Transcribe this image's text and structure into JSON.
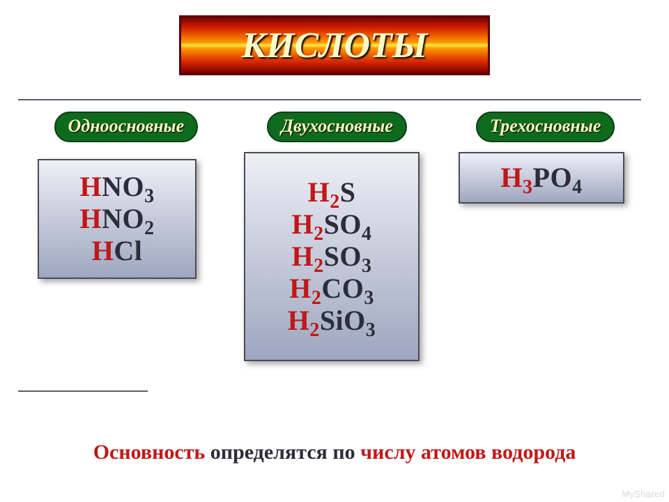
{
  "colors": {
    "title_border": "#5a0000",
    "title_text": "#fff8c8",
    "title_gradient": [
      "#7a0000",
      "#d62400",
      "#ff9a00",
      "#ffe84a"
    ],
    "pill_bg": "#0e6b1e",
    "pill_border": "#063d10",
    "pill_text": "#fff6bd",
    "card_bg_top": "#eef0f6",
    "card_bg_bottom": "#9ea6c0",
    "formula_h": "#c01717",
    "formula_rest": "#2c2c3a",
    "footer_accent": "#c01717",
    "footer_plain": "#2c2c3a"
  },
  "fonts": {
    "title_size": 52,
    "pill_size": 26,
    "formula_size": 40,
    "footer_size": 30
  },
  "title": "КИСЛОТЫ",
  "categories": [
    {
      "label": "Одноосновные"
    },
    {
      "label": "Двухосновные"
    },
    {
      "label": "Трехосновные"
    }
  ],
  "columns": {
    "mono": [
      [
        {
          "t": "H",
          "c": "h"
        },
        {
          "t": "NO",
          "c": "r"
        },
        {
          "t": "3",
          "c": "r",
          "sub": true
        }
      ],
      [
        {
          "t": "H",
          "c": "h"
        },
        {
          "t": "NO",
          "c": "r"
        },
        {
          "t": "2",
          "c": "r",
          "sub": true
        }
      ],
      [
        {
          "t": "H",
          "c": "h"
        },
        {
          "t": "Cl",
          "c": "r"
        }
      ]
    ],
    "di": [
      [
        {
          "t": "H",
          "c": "h"
        },
        {
          "t": "2",
          "c": "h",
          "sub": true
        },
        {
          "t": "S",
          "c": "r"
        }
      ],
      [
        {
          "t": "H",
          "c": "h"
        },
        {
          "t": "2",
          "c": "h",
          "sub": true
        },
        {
          "t": "SO",
          "c": "r"
        },
        {
          "t": "4",
          "c": "r",
          "sub": true
        }
      ],
      [
        {
          "t": "H",
          "c": "h"
        },
        {
          "t": "2",
          "c": "h",
          "sub": true
        },
        {
          "t": "SO",
          "c": "r"
        },
        {
          "t": "3",
          "c": "r",
          "sub": true
        }
      ],
      [
        {
          "t": "H",
          "c": "h"
        },
        {
          "t": "2",
          "c": "h",
          "sub": true
        },
        {
          "t": "CO",
          "c": "r"
        },
        {
          "t": "3",
          "c": "r",
          "sub": true
        }
      ],
      [
        {
          "t": "H",
          "c": "h"
        },
        {
          "t": "2",
          "c": "h",
          "sub": true
        },
        {
          "t": "SiO",
          "c": "r"
        },
        {
          "t": "3",
          "c": "r",
          "sub": true
        }
      ]
    ],
    "tri": [
      [
        {
          "t": "H",
          "c": "h"
        },
        {
          "t": "3",
          "c": "h",
          "sub": true
        },
        {
          "t": "PO",
          "c": "r"
        },
        {
          "t": "4",
          "c": "r",
          "sub": true
        }
      ]
    ]
  },
  "footer": {
    "parts": [
      {
        "t": "Основность ",
        "accent": true
      },
      {
        "t": "определятся по ",
        "accent": false
      },
      {
        "t": "числу атомов водорода",
        "accent": true
      }
    ]
  },
  "watermark": "MyShared"
}
